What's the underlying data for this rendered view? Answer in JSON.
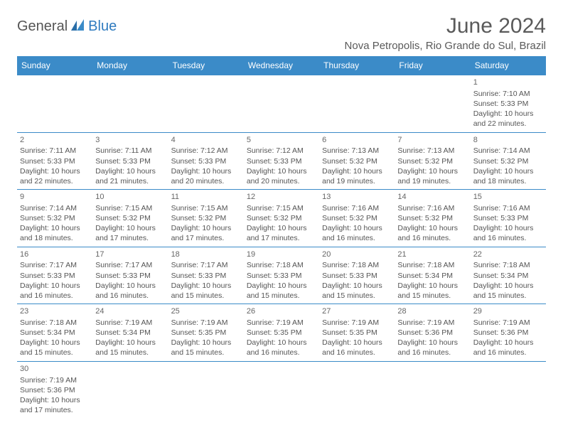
{
  "logo": {
    "text1": "General",
    "text2": "Blue"
  },
  "title": "June 2024",
  "location": "Nova Petropolis, Rio Grande do Sul, Brazil",
  "colors": {
    "header_bg": "#3b8bc8",
    "header_text": "#ffffff",
    "border": "#3b8bc8",
    "body_text": "#555555",
    "logo_blue": "#2f7bbf"
  },
  "day_headers": [
    "Sunday",
    "Monday",
    "Tuesday",
    "Wednesday",
    "Thursday",
    "Friday",
    "Saturday"
  ],
  "weeks": [
    [
      null,
      null,
      null,
      null,
      null,
      null,
      {
        "d": "1",
        "sr": "7:10 AM",
        "ss": "5:33 PM",
        "dl": "10 hours and 22 minutes."
      }
    ],
    [
      {
        "d": "2",
        "sr": "7:11 AM",
        "ss": "5:33 PM",
        "dl": "10 hours and 22 minutes."
      },
      {
        "d": "3",
        "sr": "7:11 AM",
        "ss": "5:33 PM",
        "dl": "10 hours and 21 minutes."
      },
      {
        "d": "4",
        "sr": "7:12 AM",
        "ss": "5:33 PM",
        "dl": "10 hours and 20 minutes."
      },
      {
        "d": "5",
        "sr": "7:12 AM",
        "ss": "5:33 PM",
        "dl": "10 hours and 20 minutes."
      },
      {
        "d": "6",
        "sr": "7:13 AM",
        "ss": "5:32 PM",
        "dl": "10 hours and 19 minutes."
      },
      {
        "d": "7",
        "sr": "7:13 AM",
        "ss": "5:32 PM",
        "dl": "10 hours and 19 minutes."
      },
      {
        "d": "8",
        "sr": "7:14 AM",
        "ss": "5:32 PM",
        "dl": "10 hours and 18 minutes."
      }
    ],
    [
      {
        "d": "9",
        "sr": "7:14 AM",
        "ss": "5:32 PM",
        "dl": "10 hours and 18 minutes."
      },
      {
        "d": "10",
        "sr": "7:15 AM",
        "ss": "5:32 PM",
        "dl": "10 hours and 17 minutes."
      },
      {
        "d": "11",
        "sr": "7:15 AM",
        "ss": "5:32 PM",
        "dl": "10 hours and 17 minutes."
      },
      {
        "d": "12",
        "sr": "7:15 AM",
        "ss": "5:32 PM",
        "dl": "10 hours and 17 minutes."
      },
      {
        "d": "13",
        "sr": "7:16 AM",
        "ss": "5:32 PM",
        "dl": "10 hours and 16 minutes."
      },
      {
        "d": "14",
        "sr": "7:16 AM",
        "ss": "5:32 PM",
        "dl": "10 hours and 16 minutes."
      },
      {
        "d": "15",
        "sr": "7:16 AM",
        "ss": "5:33 PM",
        "dl": "10 hours and 16 minutes."
      }
    ],
    [
      {
        "d": "16",
        "sr": "7:17 AM",
        "ss": "5:33 PM",
        "dl": "10 hours and 16 minutes."
      },
      {
        "d": "17",
        "sr": "7:17 AM",
        "ss": "5:33 PM",
        "dl": "10 hours and 16 minutes."
      },
      {
        "d": "18",
        "sr": "7:17 AM",
        "ss": "5:33 PM",
        "dl": "10 hours and 15 minutes."
      },
      {
        "d": "19",
        "sr": "7:18 AM",
        "ss": "5:33 PM",
        "dl": "10 hours and 15 minutes."
      },
      {
        "d": "20",
        "sr": "7:18 AM",
        "ss": "5:33 PM",
        "dl": "10 hours and 15 minutes."
      },
      {
        "d": "21",
        "sr": "7:18 AM",
        "ss": "5:34 PM",
        "dl": "10 hours and 15 minutes."
      },
      {
        "d": "22",
        "sr": "7:18 AM",
        "ss": "5:34 PM",
        "dl": "10 hours and 15 minutes."
      }
    ],
    [
      {
        "d": "23",
        "sr": "7:18 AM",
        "ss": "5:34 PM",
        "dl": "10 hours and 15 minutes."
      },
      {
        "d": "24",
        "sr": "7:19 AM",
        "ss": "5:34 PM",
        "dl": "10 hours and 15 minutes."
      },
      {
        "d": "25",
        "sr": "7:19 AM",
        "ss": "5:35 PM",
        "dl": "10 hours and 15 minutes."
      },
      {
        "d": "26",
        "sr": "7:19 AM",
        "ss": "5:35 PM",
        "dl": "10 hours and 16 minutes."
      },
      {
        "d": "27",
        "sr": "7:19 AM",
        "ss": "5:35 PM",
        "dl": "10 hours and 16 minutes."
      },
      {
        "d": "28",
        "sr": "7:19 AM",
        "ss": "5:36 PM",
        "dl": "10 hours and 16 minutes."
      },
      {
        "d": "29",
        "sr": "7:19 AM",
        "ss": "5:36 PM",
        "dl": "10 hours and 16 minutes."
      }
    ],
    [
      {
        "d": "30",
        "sr": "7:19 AM",
        "ss": "5:36 PM",
        "dl": "10 hours and 17 minutes."
      },
      null,
      null,
      null,
      null,
      null,
      null
    ]
  ],
  "labels": {
    "sunrise": "Sunrise: ",
    "sunset": "Sunset: ",
    "daylight": "Daylight: "
  }
}
